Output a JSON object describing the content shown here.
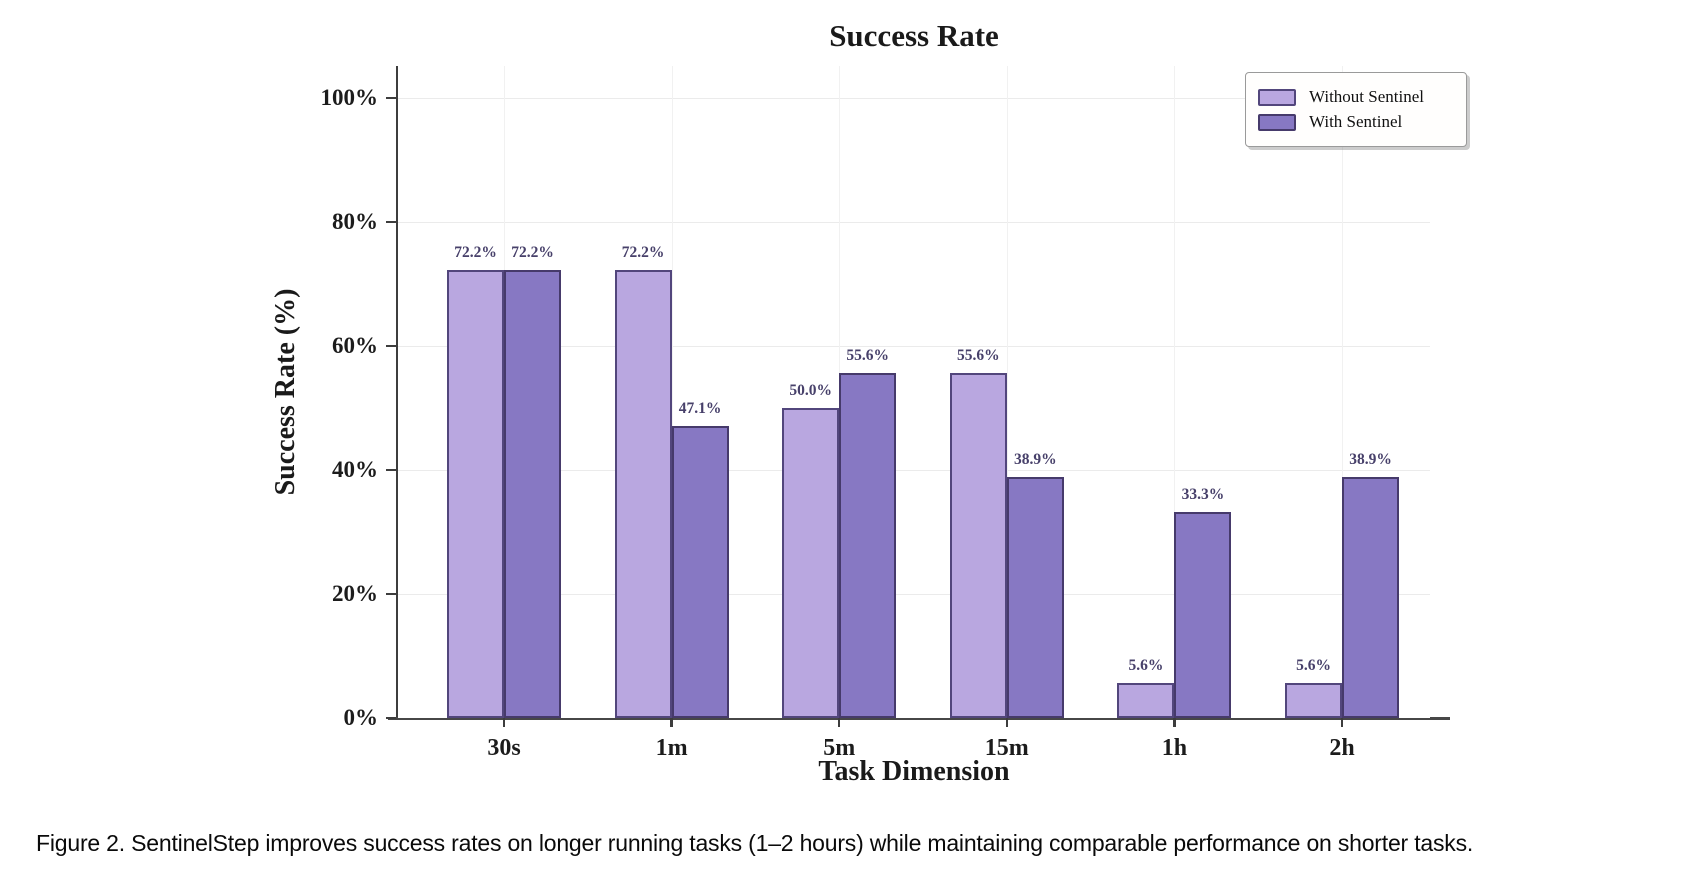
{
  "figure": {
    "caption": "Figure 2. SentinelStep improves success rates on longer running tasks (1–2 hours) while maintaining comparable performance on shorter tasks."
  },
  "chart_data": {
    "type": "bar",
    "title": "Success Rate",
    "xlabel": "Task Dimension",
    "ylabel": "Success Rate (%)",
    "categories": [
      "30s",
      "1m",
      "5m",
      "15m",
      "1h",
      "2h"
    ],
    "series": [
      {
        "name": "Without Sentinel",
        "values": [
          72.2,
          72.2,
          50.0,
          55.6,
          5.6,
          5.6
        ],
        "fill": "#b9a7e0",
        "edge": "#52467c"
      },
      {
        "name": "With Sentinel",
        "values": [
          72.2,
          47.1,
          55.6,
          38.9,
          33.3,
          38.9
        ],
        "fill": "#8778c3",
        "edge": "#463a6b"
      }
    ],
    "y_ticks": [
      "0%",
      "20%",
      "40%",
      "60%",
      "80%",
      "100%"
    ],
    "y_tick_values": [
      0,
      20,
      40,
      60,
      80,
      100
    ],
    "ylim": [
      0,
      105
    ],
    "grid": true,
    "legend_position": "upper right",
    "value_label_format": "{value}%",
    "colors": {
      "value_label": "#47406a",
      "axis": "#3d3d3d",
      "gridline": "#ebebeb"
    }
  }
}
